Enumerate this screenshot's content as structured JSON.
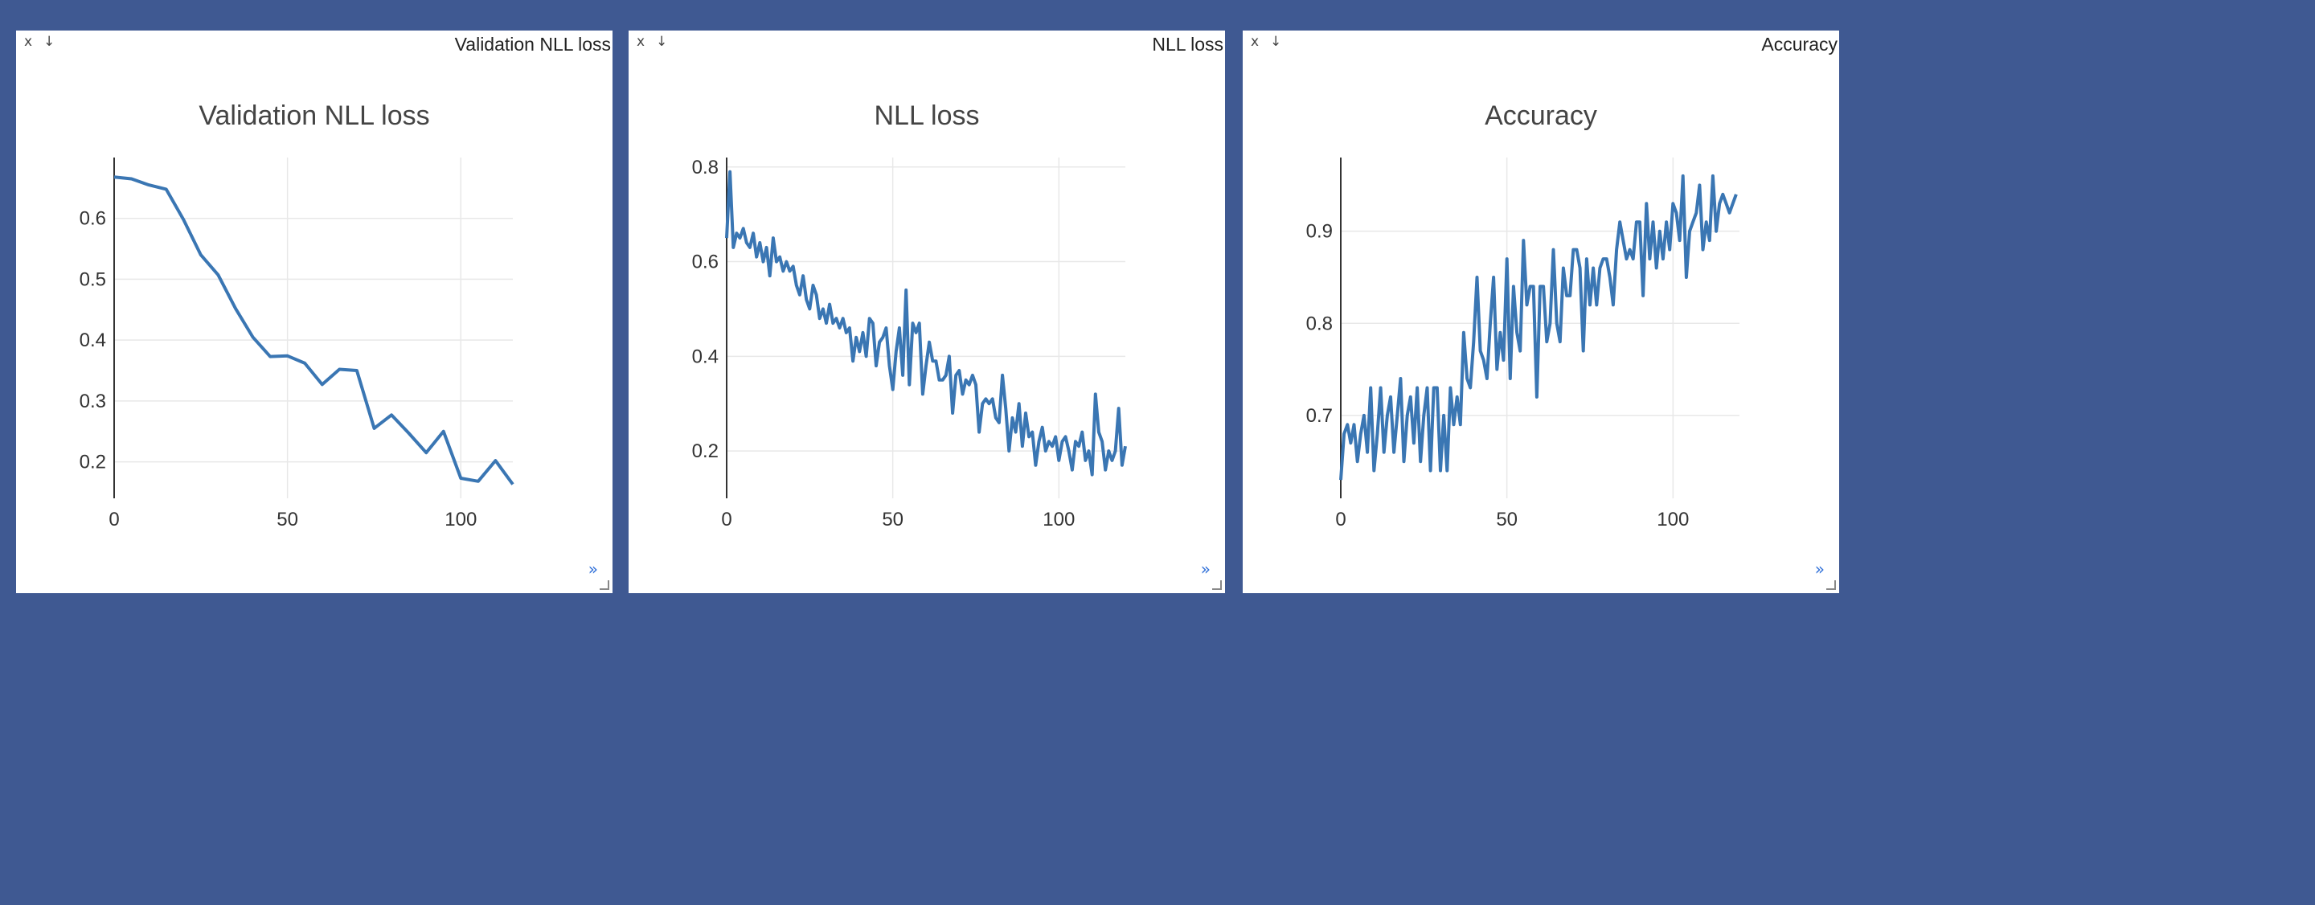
{
  "colors": {
    "background": "#3f5992",
    "pane": "#ffffff",
    "line": "#3a76b3",
    "grid": "#e8e8e8"
  },
  "controls": {
    "close": "x",
    "download": "↓",
    "more": "»"
  },
  "panes": [
    {
      "window_title": "Validation NLL loss",
      "chart_data": {
        "type": "line",
        "title": "Validation NLL loss",
        "xlim": [
          0,
          115
        ],
        "ylim": [
          0.14,
          0.7
        ],
        "xticks": [
          0,
          50,
          100
        ],
        "yticks": [
          0.2,
          0.3,
          0.4,
          0.5,
          0.6
        ],
        "x": [
          0,
          5,
          10,
          15,
          20,
          25,
          30,
          35,
          40,
          45,
          50,
          55,
          60,
          65,
          70,
          75,
          80,
          85,
          90,
          95,
          100,
          105,
          110,
          115
        ],
        "y": [
          0.668,
          0.665,
          0.655,
          0.648,
          0.598,
          0.54,
          0.507,
          0.452,
          0.405,
          0.373,
          0.374,
          0.362,
          0.327,
          0.352,
          0.35,
          0.255,
          0.277,
          0.247,
          0.215,
          0.25,
          0.173,
          0.168,
          0.202,
          0.163
        ]
      }
    },
    {
      "window_title": "NLL loss",
      "chart_data": {
        "type": "line",
        "title": "NLL loss",
        "xlim": [
          0,
          120
        ],
        "ylim": [
          0.1,
          0.82
        ],
        "xticks": [
          0,
          50,
          100
        ],
        "yticks": [
          0.2,
          0.4,
          0.6,
          0.8
        ],
        "x": [
          0,
          1,
          2,
          3,
          4,
          5,
          6,
          7,
          8,
          9,
          10,
          11,
          12,
          13,
          14,
          15,
          16,
          17,
          18,
          19,
          20,
          21,
          22,
          23,
          24,
          25,
          26,
          27,
          28,
          29,
          30,
          31,
          32,
          33,
          34,
          35,
          36,
          37,
          38,
          39,
          40,
          41,
          42,
          43,
          44,
          45,
          46,
          47,
          48,
          49,
          50,
          51,
          52,
          53,
          54,
          55,
          56,
          57,
          58,
          59,
          60,
          61,
          62,
          63,
          64,
          65,
          66,
          67,
          68,
          69,
          70,
          71,
          72,
          73,
          74,
          75,
          76,
          77,
          78,
          79,
          80,
          81,
          82,
          83,
          84,
          85,
          86,
          87,
          88,
          89,
          90,
          91,
          92,
          93,
          94,
          95,
          96,
          97,
          98,
          99,
          100,
          101,
          102,
          103,
          104,
          105,
          106,
          107,
          108,
          109,
          110,
          111,
          112,
          113,
          114,
          115,
          116,
          117,
          118,
          119,
          120
        ],
        "y": [
          0.65,
          0.79,
          0.63,
          0.66,
          0.65,
          0.67,
          0.64,
          0.63,
          0.66,
          0.61,
          0.64,
          0.6,
          0.63,
          0.57,
          0.65,
          0.6,
          0.61,
          0.58,
          0.6,
          0.58,
          0.59,
          0.55,
          0.53,
          0.57,
          0.52,
          0.5,
          0.55,
          0.53,
          0.48,
          0.5,
          0.47,
          0.51,
          0.47,
          0.48,
          0.46,
          0.48,
          0.45,
          0.46,
          0.39,
          0.44,
          0.41,
          0.45,
          0.4,
          0.48,
          0.47,
          0.38,
          0.43,
          0.44,
          0.46,
          0.38,
          0.33,
          0.41,
          0.46,
          0.36,
          0.54,
          0.34,
          0.47,
          0.45,
          0.47,
          0.32,
          0.38,
          0.43,
          0.39,
          0.39,
          0.35,
          0.35,
          0.36,
          0.4,
          0.28,
          0.36,
          0.37,
          0.32,
          0.35,
          0.34,
          0.36,
          0.34,
          0.24,
          0.3,
          0.31,
          0.3,
          0.31,
          0.27,
          0.26,
          0.36,
          0.29,
          0.2,
          0.27,
          0.24,
          0.3,
          0.21,
          0.28,
          0.23,
          0.24,
          0.17,
          0.22,
          0.25,
          0.2,
          0.22,
          0.21,
          0.23,
          0.18,
          0.22,
          0.23,
          0.2,
          0.16,
          0.22,
          0.21,
          0.24,
          0.18,
          0.2,
          0.15,
          0.32,
          0.24,
          0.22,
          0.16,
          0.2,
          0.18,
          0.2,
          0.29,
          0.17,
          0.21
        ],
        "y_note_removed": true
      }
    },
    {
      "window_title": "Accuracy",
      "chart_data": {
        "type": "line",
        "title": "Accuracy",
        "xlim": [
          0,
          120
        ],
        "ylim": [
          0.61,
          0.98
        ],
        "xticks": [
          0,
          50,
          100
        ],
        "yticks": [
          0.7,
          0.8,
          0.9
        ],
        "x": [
          0,
          1,
          2,
          3,
          4,
          5,
          6,
          7,
          8,
          9,
          10,
          11,
          12,
          13,
          14,
          15,
          16,
          17,
          18,
          19,
          20,
          21,
          22,
          23,
          24,
          25,
          26,
          27,
          28,
          29,
          30,
          31,
          32,
          33,
          34,
          35,
          36,
          37,
          38,
          39,
          40,
          41,
          42,
          43,
          44,
          45,
          46,
          47,
          48,
          49,
          50,
          51,
          52,
          53,
          54,
          55,
          56,
          57,
          58,
          59,
          60,
          61,
          62,
          63,
          64,
          65,
          66,
          67,
          68,
          69,
          70,
          71,
          72,
          73,
          74,
          75,
          76,
          77,
          78,
          79,
          80,
          81,
          82,
          83,
          84,
          85,
          86,
          87,
          88,
          89,
          90,
          91,
          92,
          93,
          94,
          95,
          96,
          97,
          98,
          99,
          100,
          101,
          102,
          103,
          104,
          105,
          106,
          107,
          108,
          109,
          110,
          111,
          112,
          113,
          114,
          115,
          116,
          117,
          118,
          119
        ],
        "y": [
          0.63,
          0.68,
          0.69,
          0.67,
          0.69,
          0.65,
          0.68,
          0.7,
          0.66,
          0.73,
          0.64,
          0.68,
          0.73,
          0.66,
          0.7,
          0.72,
          0.66,
          0.7,
          0.74,
          0.65,
          0.7,
          0.72,
          0.67,
          0.73,
          0.65,
          0.7,
          0.73,
          0.64,
          0.73,
          0.73,
          0.64,
          0.7,
          0.64,
          0.73,
          0.69,
          0.72,
          0.69,
          0.79,
          0.74,
          0.73,
          0.78,
          0.85,
          0.77,
          0.76,
          0.74,
          0.8,
          0.85,
          0.75,
          0.79,
          0.76,
          0.87,
          0.74,
          0.84,
          0.79,
          0.77,
          0.89,
          0.82,
          0.84,
          0.84,
          0.72,
          0.84,
          0.84,
          0.78,
          0.8,
          0.88,
          0.8,
          0.78,
          0.86,
          0.83,
          0.83,
          0.88,
          0.88,
          0.86,
          0.77,
          0.87,
          0.82,
          0.86,
          0.82,
          0.86,
          0.87,
          0.87,
          0.85,
          0.82,
          0.88,
          0.91,
          0.89,
          0.87,
          0.88,
          0.87,
          0.91,
          0.91,
          0.83,
          0.93,
          0.87,
          0.91,
          0.86,
          0.9,
          0.87,
          0.91,
          0.88,
          0.93,
          0.92,
          0.89,
          0.96,
          0.85,
          0.9,
          0.91,
          0.92,
          0.95,
          0.88,
          0.91,
          0.89,
          0.96,
          0.9,
          0.93,
          0.94,
          0.93,
          0.92,
          0.93,
          0.94
        ]
      }
    }
  ]
}
